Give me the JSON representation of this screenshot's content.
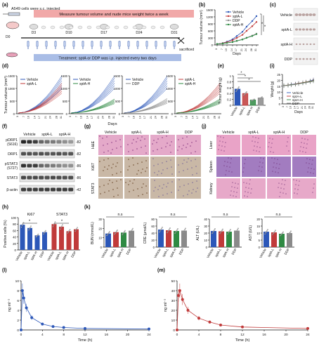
{
  "colors": {
    "vehicle": "#2c57b8",
    "sptA_L": "#c03a3a",
    "sptA_H": "#2f8a43",
    "ddp": "#8a8a8a",
    "banner_top": "#f1a8a8",
    "banner_bottom": "#a9bde6",
    "he_stain": "#e4a9c9",
    "ihc_stain": "#c9b8a6"
  },
  "panel_letters": [
    "(a)",
    "(b)",
    "(c)",
    "(d)",
    "(e)",
    "(f)",
    "(g)",
    "(h)",
    "(i)",
    "(j)",
    "(k)",
    "(l)",
    "(m)"
  ],
  "panel_a": {
    "cells_note": "A549 cells were s.c. injected",
    "top_banner": "Measure tumour volume and nude mice weight twice a week",
    "bottom_banner": "Treatment: sptA or DDP was i.p. injected every two days",
    "timepoints": [
      "D0",
      "D3",
      "D10",
      "D17",
      "D24",
      "D31"
    ],
    "end_label": "sacrificed"
  },
  "panel_d": {
    "rows": [
      "Vehicle",
      "sptA-L",
      "sptA-H",
      "DDP"
    ]
  },
  "panel_g": {
    "columns": [
      "Vehicle",
      "sptA-L",
      "sptA-H",
      "DDP"
    ],
    "rows": [
      "H&E",
      "Ki67",
      "STAT3"
    ]
  },
  "panel_j": {
    "columns": [
      "Vehicle",
      "sptA-L",
      "sptA-H",
      "DDP"
    ],
    "rows": [
      "Liver",
      "Spleen",
      "Kidney"
    ]
  },
  "panel_f": {
    "header": [
      "Vehicle",
      "sptA-L",
      "sptA-H"
    ],
    "rows": [
      {
        "label": "pDRP1",
        "label2": "(S616)",
        "mw": "82"
      },
      {
        "label": "DRP1",
        "label2": "",
        "mw": "82"
      },
      {
        "label": "pSTAT3",
        "label2": "(S727)",
        "mw": "86"
      },
      {
        "label": "STAT3",
        "label2": "",
        "mw": "86"
      },
      {
        "label": "β-actin",
        "label2": "",
        "mw": "42"
      }
    ]
  },
  "chart_data": [
    {
      "id": "b",
      "type": "line",
      "ylabel": "Tumour volume (mm³)",
      "xlabel": "Days",
      "x": [
        3,
        7,
        10,
        14,
        17,
        21,
        24,
        28,
        31
      ],
      "ylim": [
        0,
        1500
      ],
      "yticks": [
        0,
        300,
        600,
        900,
        1200,
        1500
      ],
      "series": [
        {
          "name": "Vehicle",
          "values": [
            40,
            80,
            140,
            240,
            380,
            560,
            780,
            1020,
            1230
          ]
        },
        {
          "name": "sptA-L",
          "values": [
            40,
            75,
            120,
            200,
            300,
            430,
            600,
            800,
            980
          ]
        },
        {
          "name": "DDP",
          "values": [
            40,
            60,
            90,
            130,
            180,
            240,
            310,
            400,
            480
          ]
        },
        {
          "name": "sptA-H",
          "values": [
            40,
            60,
            85,
            120,
            170,
            230,
            300,
            380,
            460
          ]
        }
      ],
      "stars": [
        "*",
        "*"
      ]
    },
    {
      "id": "c",
      "type": "line",
      "ylabel": "Tumour volume (mm³)",
      "xlabel": "Days",
      "xticks": [
        "3",
        "7",
        "10",
        "14",
        "17",
        "21",
        "24",
        "28",
        "31"
      ],
      "ylim": [
        0,
        1500
      ],
      "yticks": [
        0,
        500,
        1000,
        1500
      ],
      "subplots": [
        {
          "legend": [
            "Vehicle",
            "sptA-L"
          ],
          "groups": [
            "vehicle",
            "sptA_L"
          ]
        },
        {
          "legend": [
            "Vehicle",
            "sptA-H"
          ],
          "groups": [
            "vehicle",
            "sptA_H"
          ]
        },
        {
          "legend": [
            "Vehicle",
            "DDP"
          ],
          "groups": [
            "vehicle",
            "ddp"
          ]
        },
        {
          "legend": [
            "sptA-L",
            "sptA-H"
          ],
          "groups": [
            "sptA_L",
            "sptA_H"
          ]
        }
      ],
      "endpoint_means": {
        "vehicle": 1230,
        "sptA_L": 980,
        "sptA_H": 460,
        "ddp": 480
      }
    },
    {
      "id": "e",
      "type": "bar",
      "ylabel": "Tumor weight (g)",
      "categories": [
        "Vehicle",
        "sptA-L",
        "sptA-H",
        "DDP"
      ],
      "values": [
        0.55,
        0.4,
        0.18,
        0.25
      ],
      "ylim": [
        0,
        1.0
      ],
      "yticks": [
        0.0,
        0.2,
        0.4,
        0.6,
        0.8,
        1.0
      ],
      "stars": [
        "*",
        "*",
        "*"
      ]
    },
    {
      "id": "i",
      "type": "line",
      "ylabel": "Weight (g)",
      "xlabel": "Days",
      "x": [
        3,
        7,
        10,
        14,
        17,
        21,
        24,
        28,
        31
      ],
      "ylim": [
        0,
        25
      ],
      "yticks": [
        0,
        5,
        10,
        15,
        20,
        25
      ],
      "series": [
        {
          "name": "Vehicle",
          "values": [
            15.5,
            16,
            16.5,
            17,
            17.5,
            18,
            18.5,
            19.5,
            20.5
          ]
        },
        {
          "name": "sptA-L",
          "values": [
            15.5,
            16,
            16.3,
            16.8,
            17.5,
            18,
            18.6,
            19.2,
            20
          ]
        },
        {
          "name": "sptA-H",
          "values": [
            15.4,
            15.8,
            16.2,
            16.6,
            17.2,
            17.8,
            18.3,
            19,
            19.6
          ]
        },
        {
          "name": "DDP",
          "values": [
            15.3,
            15.6,
            16,
            16.4,
            17,
            17.5,
            18,
            18.6,
            19.2
          ]
        }
      ]
    },
    {
      "id": "h",
      "type": "bar",
      "ylabel": "Positive cells (%)",
      "groups": [
        "Ki67",
        "STAT3"
      ],
      "categories": [
        "Vehicle",
        "sptA-L",
        "sptA-H",
        "DDP"
      ],
      "values_ki67": [
        78,
        68,
        45,
        55
      ],
      "values_stat3": [
        80,
        72,
        58,
        64
      ],
      "ylim": [
        0,
        100
      ],
      "yticks": [
        0,
        20,
        40,
        60,
        80,
        100
      ],
      "stars": [
        "*",
        "*"
      ]
    },
    {
      "id": "k",
      "type": "bar",
      "categories": [
        "Vehicle",
        "sptA-L",
        "sptA-H",
        "DDP"
      ],
      "subplots": [
        {
          "ylabel": "BUN (mmol/L)",
          "ylim": [
            0,
            30
          ],
          "yticks": [
            0,
            10,
            20,
            30
          ],
          "values": [
            14.5,
            16,
            15.5,
            17.5
          ],
          "ns": "n.s"
        },
        {
          "ylabel": "CRE (μmol/L)",
          "ylim": [
            0,
            80
          ],
          "yticks": [
            0,
            20,
            40,
            60,
            80
          ],
          "values": [
            50,
            48,
            46,
            47
          ],
          "ns": "n.s"
        },
        {
          "ylabel": "ALT (U/L)",
          "ylim": [
            0,
            40
          ],
          "yticks": [
            0,
            10,
            20,
            30,
            40
          ],
          "values": [
            23,
            22.5,
            22,
            23.5
          ],
          "ns": "n.s"
        },
        {
          "ylabel": "AST (U/L)",
          "ylim": [
            0,
            20
          ],
          "yticks": [
            0,
            5,
            10,
            15,
            20
          ],
          "values": [
            11,
            10.5,
            9.5,
            10
          ],
          "ns": "n.s"
        }
      ]
    },
    {
      "id": "l",
      "type": "line",
      "ylabel": "ng ml⁻¹",
      "xlabel": "Time (h)",
      "x": [
        0,
        0.25,
        0.5,
        1,
        2,
        4,
        6,
        8,
        12,
        24
      ],
      "values": [
        0,
        8,
        6.5,
        4.5,
        2.5,
        1.2,
        0.7,
        0.5,
        0.3,
        0.2
      ],
      "xlim": [
        0,
        24
      ],
      "xticks": [
        0,
        4,
        8,
        12,
        16,
        20,
        24
      ],
      "ylim": [
        0,
        10
      ],
      "yticks": [
        0,
        2,
        4,
        6,
        8,
        10
      ]
    },
    {
      "id": "m",
      "type": "line",
      "ylabel": "ng ml⁻¹",
      "xlabel": "Time (h)",
      "x": [
        0,
        0.25,
        0.5,
        1,
        2,
        4,
        6,
        8,
        12,
        24
      ],
      "values": [
        0,
        35,
        40,
        31,
        20,
        12,
        8,
        5,
        3,
        1.5
      ],
      "xlim": [
        0,
        24
      ],
      "xticks": [
        0,
        4,
        8,
        12,
        16,
        20,
        24
      ],
      "ylim": [
        0,
        50
      ],
      "yticks": [
        0,
        10,
        20,
        30,
        40,
        50
      ]
    }
  ]
}
